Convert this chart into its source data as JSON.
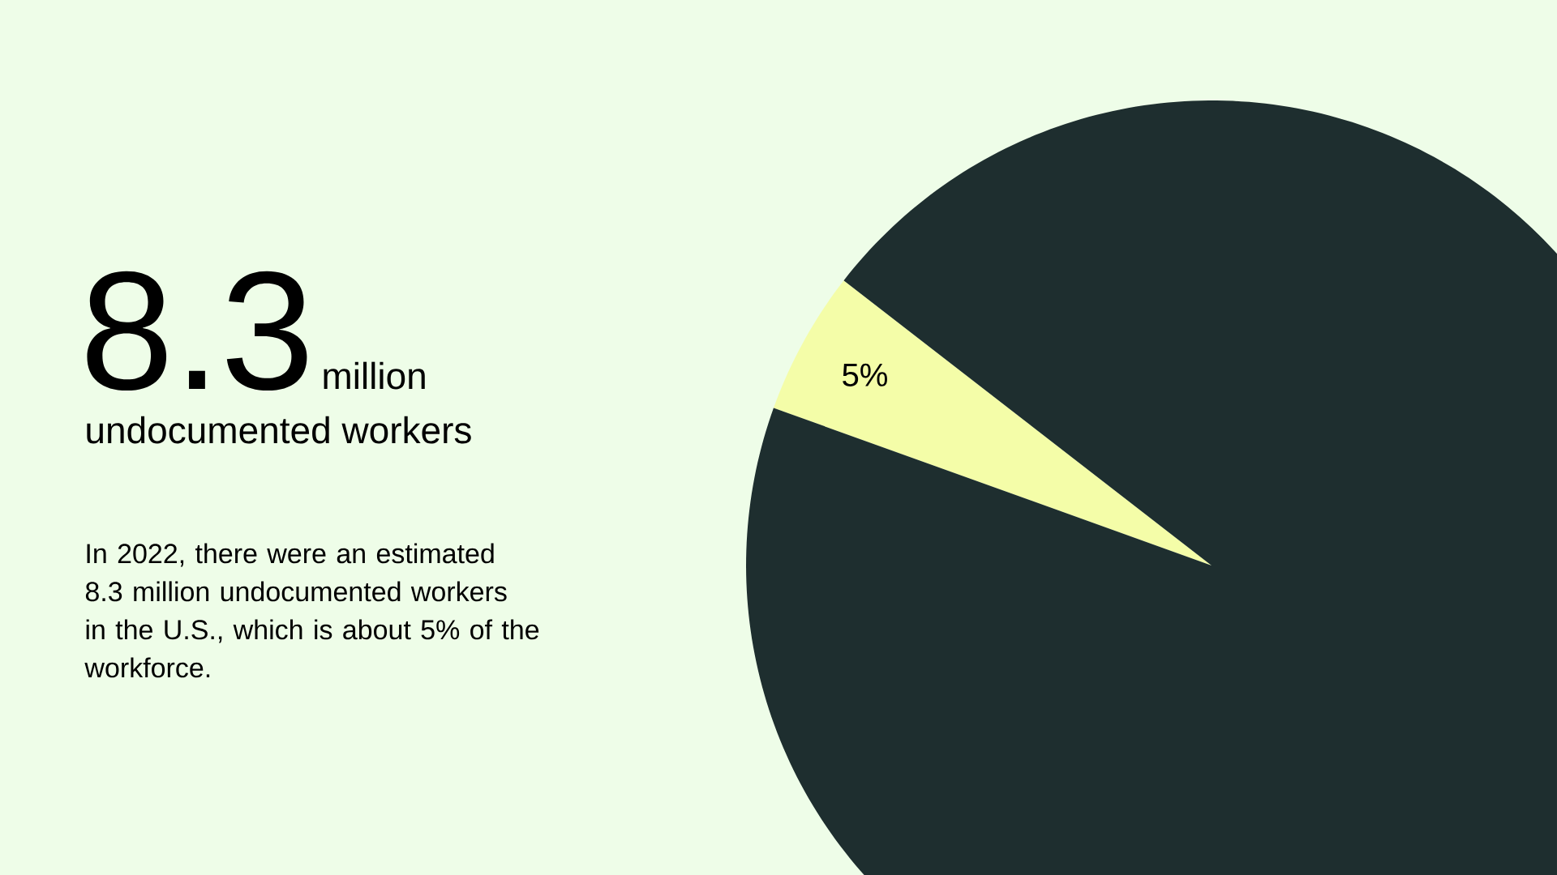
{
  "chart_data": {
    "type": "pie",
    "title": "8.3",
    "subtitle": "million",
    "annotations": [
      "undocumented workers",
      "In 2022, there were an estimated 8.3 million undocumented workers in the U.S., which is about 5% of the workforce."
    ],
    "categories": [
      null,
      null
    ],
    "values": [
      5,
      95
    ],
    "colors": [
      "#f4fda8",
      "#1e2e2f"
    ],
    "value_labels": [
      "5%",
      null
    ]
  }
}
